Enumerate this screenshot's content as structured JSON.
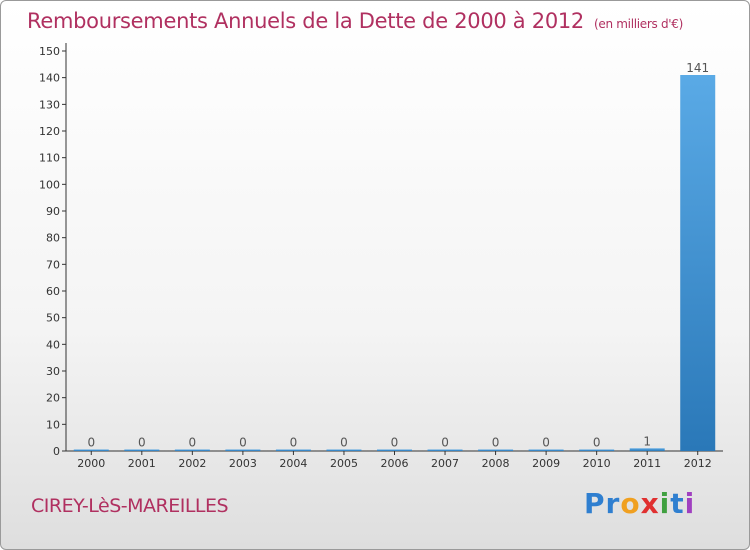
{
  "chart_data": {
    "type": "bar",
    "title": "Remboursements Annuels de la Dette de 2000 à 2012",
    "unit_label": "(en milliers d'€)",
    "categories": [
      "2000",
      "2001",
      "2002",
      "2003",
      "2004",
      "2005",
      "2006",
      "2007",
      "2008",
      "2009",
      "2010",
      "2011",
      "2012"
    ],
    "values": [
      0,
      0,
      0,
      0,
      0,
      0,
      0,
      0,
      0,
      0,
      0,
      1,
      141
    ],
    "data_labels": [
      "0",
      "0",
      "0",
      "0",
      "0",
      "0",
      "0",
      "0",
      "0",
      "0",
      "0",
      "1",
      "141"
    ],
    "ylim": [
      0,
      150
    ],
    "yticks": [
      0,
      10,
      20,
      30,
      40,
      50,
      60,
      70,
      80,
      90,
      100,
      110,
      120,
      130,
      140,
      150
    ],
    "grid": false,
    "bar_color_top": "#5aaae6",
    "bar_color_bottom": "#2a78b8"
  },
  "footer": {
    "town": "CIREY-LèS-MAREILLES",
    "logo": [
      "Pr",
      "o",
      "x",
      "i",
      "t",
      "i"
    ]
  },
  "colors": {
    "title": "#b03060",
    "axis": "#333333"
  }
}
